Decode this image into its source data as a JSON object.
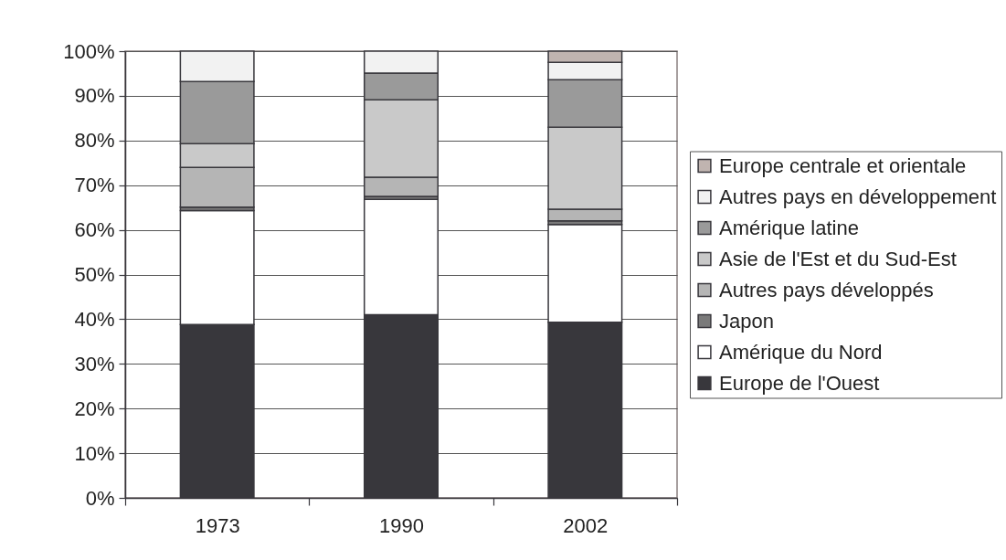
{
  "chart_data": {
    "type": "bar",
    "stacked": true,
    "categories": [
      "1973",
      "1990",
      "2002"
    ],
    "series": [
      {
        "name": "Europe de l'Ouest",
        "color": "#38373c",
        "values": [
          38.8,
          41.0,
          39.3
        ]
      },
      {
        "name": "Amérique du Nord",
        "color": "#ffffff",
        "values": [
          25.5,
          25.8,
          21.9
        ]
      },
      {
        "name": "Japon",
        "color": "#7a7a7a",
        "values": [
          0.8,
          0.7,
          0.8
        ]
      },
      {
        "name": "Autres pays développés",
        "color": "#b5b5b5",
        "values": [
          8.9,
          4.3,
          2.6
        ]
      },
      {
        "name": "Asie de l'Est et du Sud-Est",
        "color": "#c9c9c9",
        "values": [
          5.3,
          17.3,
          18.4
        ]
      },
      {
        "name": "Amérique latine",
        "color": "#9a9a9a",
        "values": [
          13.9,
          6.0,
          10.6
        ]
      },
      {
        "name": "Autres pays en développement",
        "color": "#f2f2f2",
        "values": [
          6.8,
          4.9,
          3.9
        ]
      },
      {
        "name": "Europe centrale et orientale",
        "color": "#c0b4b0",
        "values": [
          null,
          null,
          2.5
        ]
      }
    ],
    "ylim": [
      0,
      100
    ],
    "yticks": [
      {
        "value": 0,
        "label": "0%"
      },
      {
        "value": 10,
        "label": "10%"
      },
      {
        "value": 20,
        "label": "20%"
      },
      {
        "value": 30,
        "label": "30%"
      },
      {
        "value": 40,
        "label": "40%"
      },
      {
        "value": 50,
        "label": "50%"
      },
      {
        "value": 60,
        "label": "60%"
      },
      {
        "value": 70,
        "label": "70%"
      },
      {
        "value": 80,
        "label": "80%"
      },
      {
        "value": 90,
        "label": "90%"
      },
      {
        "value": 100,
        "label": "100%"
      }
    ],
    "grid": "y",
    "legend": "right"
  }
}
